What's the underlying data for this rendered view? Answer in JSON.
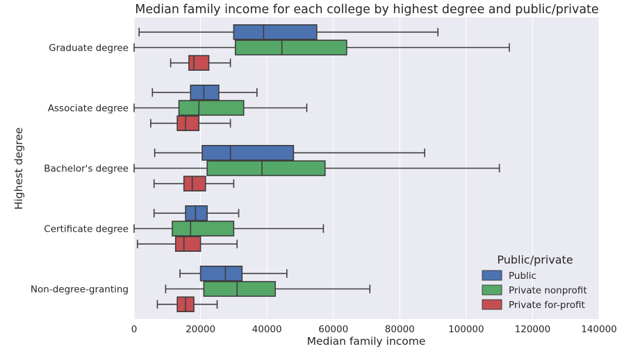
{
  "chart_data": {
    "type": "boxplot",
    "orientation": "horizontal",
    "title": "Median family income for each college by highest degree and public/private",
    "xlabel": "Median family income",
    "ylabel": "Highest degree",
    "xlim": [
      0,
      140000
    ],
    "xticks": [
      0,
      20000,
      40000,
      60000,
      80000,
      100000,
      120000,
      140000
    ],
    "xtick_labels": [
      "0",
      "20000",
      "40000",
      "60000",
      "80000",
      "100000",
      "120000",
      "140000"
    ],
    "grid": true,
    "legend": {
      "title": "Public/private",
      "placement": "bottom-right"
    },
    "categories": [
      "Graduate degree",
      "Associate degree",
      "Bachelor's degree",
      "Certificate degree",
      "Non-degree-granting"
    ],
    "series": [
      {
        "name": "Public",
        "color": "#4c72b0",
        "boxes": [
          {
            "whislo": 1500,
            "q1": 30000,
            "med": 39000,
            "q3": 55000,
            "whishi": 91500
          },
          {
            "whislo": 5500,
            "q1": 17000,
            "med": 21000,
            "q3": 25500,
            "whishi": 37000
          },
          {
            "whislo": 6200,
            "q1": 20500,
            "med": 29000,
            "q3": 48000,
            "whishi": 87500
          },
          {
            "whislo": 6000,
            "q1": 15500,
            "med": 18500,
            "q3": 22000,
            "whishi": 31500
          },
          {
            "whislo": 13800,
            "q1": 20000,
            "med": 27500,
            "q3": 32500,
            "whishi": 46000
          }
        ]
      },
      {
        "name": "Private nonprofit",
        "color": "#55a868",
        "boxes": [
          {
            "whislo": 0,
            "q1": 30500,
            "med": 44500,
            "q3": 64000,
            "whishi": 113000
          },
          {
            "whislo": 0,
            "q1": 13500,
            "med": 19500,
            "q3": 33000,
            "whishi": 52000
          },
          {
            "whislo": 0,
            "q1": 22000,
            "med": 38500,
            "q3": 57500,
            "whishi": 110000
          },
          {
            "whislo": 0,
            "q1": 11500,
            "med": 17000,
            "q3": 30000,
            "whishi": 57000
          },
          {
            "whislo": 9500,
            "q1": 21000,
            "med": 31000,
            "q3": 42500,
            "whishi": 71000
          }
        ]
      },
      {
        "name": "Private for-profit",
        "color": "#c44e52",
        "boxes": [
          {
            "whislo": 11000,
            "q1": 16500,
            "med": 18000,
            "q3": 22500,
            "whishi": 29000
          },
          {
            "whislo": 5000,
            "q1": 13000,
            "med": 15500,
            "q3": 19500,
            "whishi": 29000
          },
          {
            "whislo": 6000,
            "q1": 15000,
            "med": 17500,
            "q3": 21500,
            "whishi": 30000
          },
          {
            "whislo": 1000,
            "q1": 12500,
            "med": 15000,
            "q3": 20000,
            "whishi": 31000
          },
          {
            "whislo": 7000,
            "q1": 13000,
            "med": 15500,
            "q3": 18000,
            "whishi": 25000
          }
        ]
      }
    ]
  }
}
